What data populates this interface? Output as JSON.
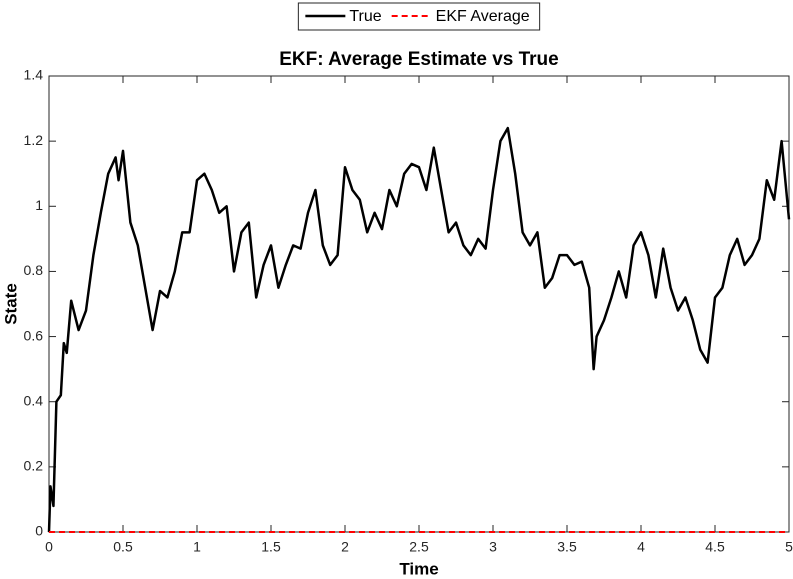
{
  "chart_data": {
    "type": "line",
    "title": "EKF: Average Estimate vs True",
    "x_label": "Time",
    "y_label": "State",
    "xlim": [
      0,
      5
    ],
    "xticks": [
      0,
      0.5,
      1,
      1.5,
      2,
      2.5,
      3,
      3.5,
      4,
      4.5,
      5
    ],
    "ylim": [
      0,
      1.4
    ],
    "yticks": [
      0,
      0.2,
      0.4,
      0.6,
      0.8,
      1,
      1.2,
      1.4
    ],
    "legend": "top",
    "series": [
      {
        "name": "True",
        "color": "#000000",
        "dash": false,
        "x": [
          0,
          0.01,
          0.03,
          0.05,
          0.08,
          0.1,
          0.12,
          0.15,
          0.2,
          0.25,
          0.3,
          0.35,
          0.4,
          0.45,
          0.47,
          0.5,
          0.55,
          0.6,
          0.65,
          0.7,
          0.75,
          0.8,
          0.85,
          0.9,
          0.95,
          1.0,
          1.05,
          1.1,
          1.15,
          1.2,
          1.25,
          1.3,
          1.35,
          1.4,
          1.45,
          1.5,
          1.55,
          1.6,
          1.65,
          1.7,
          1.75,
          1.8,
          1.85,
          1.9,
          1.95,
          2.0,
          2.05,
          2.1,
          2.15,
          2.2,
          2.25,
          2.3,
          2.35,
          2.4,
          2.45,
          2.5,
          2.55,
          2.6,
          2.65,
          2.7,
          2.75,
          2.8,
          2.85,
          2.9,
          2.95,
          3.0,
          3.05,
          3.1,
          3.15,
          3.2,
          3.25,
          3.3,
          3.35,
          3.4,
          3.45,
          3.5,
          3.55,
          3.6,
          3.65,
          3.68,
          3.7,
          3.75,
          3.8,
          3.85,
          3.9,
          3.95,
          4.0,
          4.05,
          4.1,
          4.15,
          4.2,
          4.25,
          4.3,
          4.35,
          4.4,
          4.45,
          4.5,
          4.55,
          4.6,
          4.65,
          4.7,
          4.75,
          4.8,
          4.85,
          4.9,
          4.95,
          5.0
        ],
        "values": [
          0,
          0.14,
          0.08,
          0.4,
          0.42,
          0.58,
          0.55,
          0.71,
          0.62,
          0.68,
          0.85,
          0.98,
          1.1,
          1.15,
          1.08,
          1.17,
          0.95,
          0.88,
          0.75,
          0.62,
          0.74,
          0.72,
          0.8,
          0.92,
          0.92,
          1.08,
          1.1,
          1.05,
          0.98,
          1.0,
          0.8,
          0.92,
          0.95,
          0.72,
          0.82,
          0.88,
          0.75,
          0.82,
          0.88,
          0.87,
          0.98,
          1.05,
          0.88,
          0.82,
          0.85,
          1.12,
          1.05,
          1.02,
          0.92,
          0.98,
          0.93,
          1.05,
          1.0,
          1.1,
          1.13,
          1.12,
          1.05,
          1.18,
          1.05,
          0.92,
          0.95,
          0.88,
          0.85,
          0.9,
          0.87,
          1.05,
          1.2,
          1.24,
          1.1,
          0.92,
          0.88,
          0.92,
          0.75,
          0.78,
          0.85,
          0.85,
          0.82,
          0.83,
          0.75,
          0.5,
          0.6,
          0.65,
          0.72,
          0.8,
          0.72,
          0.88,
          0.92,
          0.85,
          0.72,
          0.87,
          0.75,
          0.68,
          0.72,
          0.65,
          0.56,
          0.52,
          0.72,
          0.75,
          0.85,
          0.9,
          0.82,
          0.85,
          0.9,
          1.08,
          1.02,
          1.2,
          0.96
        ]
      },
      {
        "name": "EKF Average",
        "color": "#ff0000",
        "dash": true,
        "x": [
          0,
          5
        ],
        "values": [
          0,
          0
        ]
      }
    ]
  }
}
